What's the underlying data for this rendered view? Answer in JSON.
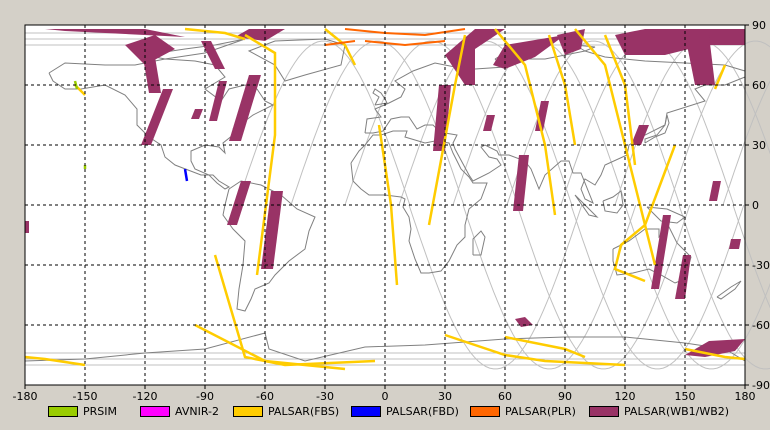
{
  "map": {
    "lon_range": [
      -180,
      180
    ],
    "lat_range": [
      -90,
      90
    ],
    "lon_ticks": [
      -180,
      -150,
      -120,
      -90,
      -60,
      -30,
      0,
      30,
      60,
      90,
      120,
      150,
      180
    ],
    "lat_ticks": [
      90,
      60,
      30,
      0,
      -30,
      -60,
      -90
    ],
    "gridlines": "dashed",
    "background": "#ffffff",
    "coastline_color": "#808080",
    "orbit_color": "#c0c0c0"
  },
  "legend": [
    {
      "label": "PRSIM",
      "color": "#99cc00"
    },
    {
      "label": "AVNIR-2",
      "color": "#ff00ff"
    },
    {
      "label": "PALSAR(FBS)",
      "color": "#ffcc00"
    },
    {
      "label": "PALSAR(FBD)",
      "color": "#0000ff"
    },
    {
      "label": "PALSAR(PLR)",
      "color": "#ff6600"
    },
    {
      "label": "PALSAR(WB1/WB2)",
      "color": "#993366"
    }
  ],
  "swaths": {
    "wb": [
      [
        [
          -122,
          80
        ],
        [
          -118,
          56
        ],
        [
          -112,
          56
        ],
        [
          -116,
          80
        ]
      ],
      [
        [
          -130,
          80
        ],
        [
          -120,
          70
        ],
        [
          -105,
          78
        ],
        [
          -115,
          85
        ]
      ],
      [
        [
          -92,
          82
        ],
        [
          -85,
          68
        ],
        [
          -80,
          68
        ],
        [
          -87,
          82
        ]
      ],
      [
        [
          -111,
          58
        ],
        [
          -122,
          30
        ],
        [
          -117,
          30
        ],
        [
          -106,
          58
        ]
      ],
      [
        [
          -68,
          65
        ],
        [
          -78,
          32
        ],
        [
          -72,
          32
        ],
        [
          -62,
          65
        ]
      ],
      [
        [
          -83,
          62
        ],
        [
          -88,
          42
        ],
        [
          -84,
          42
        ],
        [
          -79,
          62
        ]
      ],
      [
        [
          -95,
          48
        ],
        [
          -97,
          43
        ],
        [
          -93,
          43
        ],
        [
          -91,
          48
        ]
      ],
      [
        [
          -72,
          12
        ],
        [
          -79,
          -10
        ],
        [
          -74,
          -10
        ],
        [
          -67,
          12
        ]
      ],
      [
        [
          -57,
          7
        ],
        [
          -62,
          -32
        ],
        [
          -56,
          -32
        ],
        [
          -51,
          7
        ]
      ],
      [
        [
          -68,
          88
        ],
        [
          -50,
          88
        ],
        [
          -60,
          82
        ],
        [
          -75,
          84
        ]
      ],
      [
        [
          -160,
          87
        ],
        [
          -170,
          88
        ],
        [
          -120,
          88
        ],
        [
          -100,
          84
        ]
      ],
      [
        [
          30,
          75
        ],
        [
          40,
          60
        ],
        [
          45,
          60
        ],
        [
          45,
          78
        ],
        [
          60,
          88
        ],
        [
          45,
          88
        ]
      ],
      [
        [
          27,
          60
        ],
        [
          24,
          27
        ],
        [
          30,
          27
        ],
        [
          33,
          60
        ]
      ],
      [
        [
          54,
          70
        ],
        [
          60,
          80
        ],
        [
          90,
          85
        ],
        [
          75,
          74
        ],
        [
          60,
          68
        ]
      ],
      [
        [
          51,
          45
        ],
        [
          49,
          37
        ],
        [
          53,
          37
        ],
        [
          55,
          45
        ]
      ],
      [
        [
          78,
          52
        ],
        [
          75,
          37
        ],
        [
          79,
          37
        ],
        [
          82,
          52
        ]
      ],
      [
        [
          67,
          25
        ],
        [
          64,
          -3
        ],
        [
          69,
          -3
        ],
        [
          72,
          25
        ]
      ],
      [
        [
          86,
          85
        ],
        [
          90,
          75
        ],
        [
          98,
          78
        ],
        [
          100,
          88
        ]
      ],
      [
        [
          115,
          85
        ],
        [
          120,
          75
        ],
        [
          140,
          75
        ],
        [
          160,
          80
        ],
        [
          180,
          80
        ],
        [
          180,
          88
        ],
        [
          130,
          88
        ]
      ],
      [
        [
          150,
          85
        ],
        [
          155,
          60
        ],
        [
          165,
          60
        ],
        [
          162,
          85
        ]
      ],
      [
        [
          127,
          40
        ],
        [
          123,
          30
        ],
        [
          128,
          30
        ],
        [
          132,
          40
        ]
      ],
      [
        [
          164,
          12
        ],
        [
          162,
          2
        ],
        [
          166,
          2
        ],
        [
          168,
          12
        ]
      ],
      [
        [
          139,
          -5
        ],
        [
          133,
          -42
        ],
        [
          137,
          -42
        ],
        [
          143,
          -5
        ]
      ],
      [
        [
          149,
          -25
        ],
        [
          145,
          -47
        ],
        [
          150,
          -47
        ],
        [
          153,
          -25
        ]
      ],
      [
        [
          173,
          -17
        ],
        [
          172,
          -22
        ],
        [
          177,
          -22
        ],
        [
          178,
          -17
        ]
      ],
      [
        [
          150,
          -75
        ],
        [
          162,
          -68
        ],
        [
          180,
          -67
        ],
        [
          175,
          -73
        ],
        [
          160,
          -76
        ]
      ],
      [
        [
          65,
          -57
        ],
        [
          70,
          -56
        ],
        [
          74,
          -60
        ],
        [
          68,
          -61
        ]
      ],
      [
        [
          -180,
          -8
        ],
        [
          -178,
          -8
        ],
        [
          -178,
          -14
        ],
        [
          -180,
          -14
        ]
      ]
    ],
    "fbs": [
      [
        [
          -70,
          85
        ],
        [
          -55,
          76
        ],
        [
          -55,
          35
        ],
        [
          -64,
          -35
        ]
      ],
      [
        [
          -30,
          88
        ],
        [
          -20,
          80
        ],
        [
          -15,
          70
        ]
      ],
      [
        [
          -85,
          -25
        ],
        [
          -70,
          -76
        ],
        [
          -50,
          -80
        ],
        [
          -5,
          -78
        ]
      ],
      [
        [
          -95,
          -60
        ],
        [
          -60,
          -78
        ],
        [
          -20,
          -82
        ]
      ],
      [
        [
          40,
          85
        ],
        [
          35,
          60
        ],
        [
          22,
          -10
        ]
      ],
      [
        [
          82,
          85
        ],
        [
          90,
          60
        ],
        [
          95,
          30
        ]
      ],
      [
        [
          55,
          88
        ],
        [
          70,
          70
        ],
        [
          80,
          30
        ],
        [
          85,
          -5
        ]
      ],
      [
        [
          95,
          88
        ],
        [
          110,
          70
        ],
        [
          125,
          10
        ],
        [
          135,
          -30
        ]
      ],
      [
        [
          110,
          85
        ],
        [
          120,
          60
        ],
        [
          125,
          20
        ]
      ],
      [
        [
          145,
          30
        ],
        [
          130,
          -10
        ],
        [
          118,
          -20
        ],
        [
          115,
          -32
        ],
        [
          130,
          -38
        ]
      ],
      [
        [
          -3,
          40
        ],
        [
          3,
          0
        ],
        [
          6,
          -40
        ]
      ],
      [
        [
          30,
          -65
        ],
        [
          60,
          -75
        ],
        [
          80,
          -78
        ],
        [
          120,
          -80
        ]
      ],
      [
        [
          -180,
          -76
        ],
        [
          -170,
          -77
        ],
        [
          -150,
          -80
        ]
      ],
      [
        [
          60,
          -66
        ],
        [
          90,
          -72
        ],
        [
          100,
          -76
        ]
      ],
      [
        [
          150,
          -72
        ],
        [
          170,
          -76
        ],
        [
          180,
          -77
        ]
      ],
      [
        [
          170,
          70
        ],
        [
          165,
          58
        ]
      ],
      [
        [
          -155,
          60
        ],
        [
          -150,
          55
        ]
      ],
      [
        [
          -100,
          88
        ],
        [
          -80,
          86
        ],
        [
          -70,
          83
        ]
      ]
    ],
    "plr": [
      [
        [
          -20,
          88
        ],
        [
          0,
          86
        ],
        [
          20,
          85
        ],
        [
          40,
          88
        ]
      ],
      [
        [
          -10,
          82
        ],
        [
          10,
          80
        ],
        [
          30,
          82
        ]
      ],
      [
        [
          -30,
          80
        ],
        [
          -15,
          82
        ]
      ]
    ],
    "fbd": [
      [
        [
          -100,
          18
        ],
        [
          -99,
          12
        ]
      ]
    ],
    "prsim": [
      [
        [
          -155,
          62
        ],
        [
          -154,
          58
        ]
      ],
      [
        [
          -150,
          20
        ],
        [
          -150,
          18
        ]
      ]
    ]
  }
}
